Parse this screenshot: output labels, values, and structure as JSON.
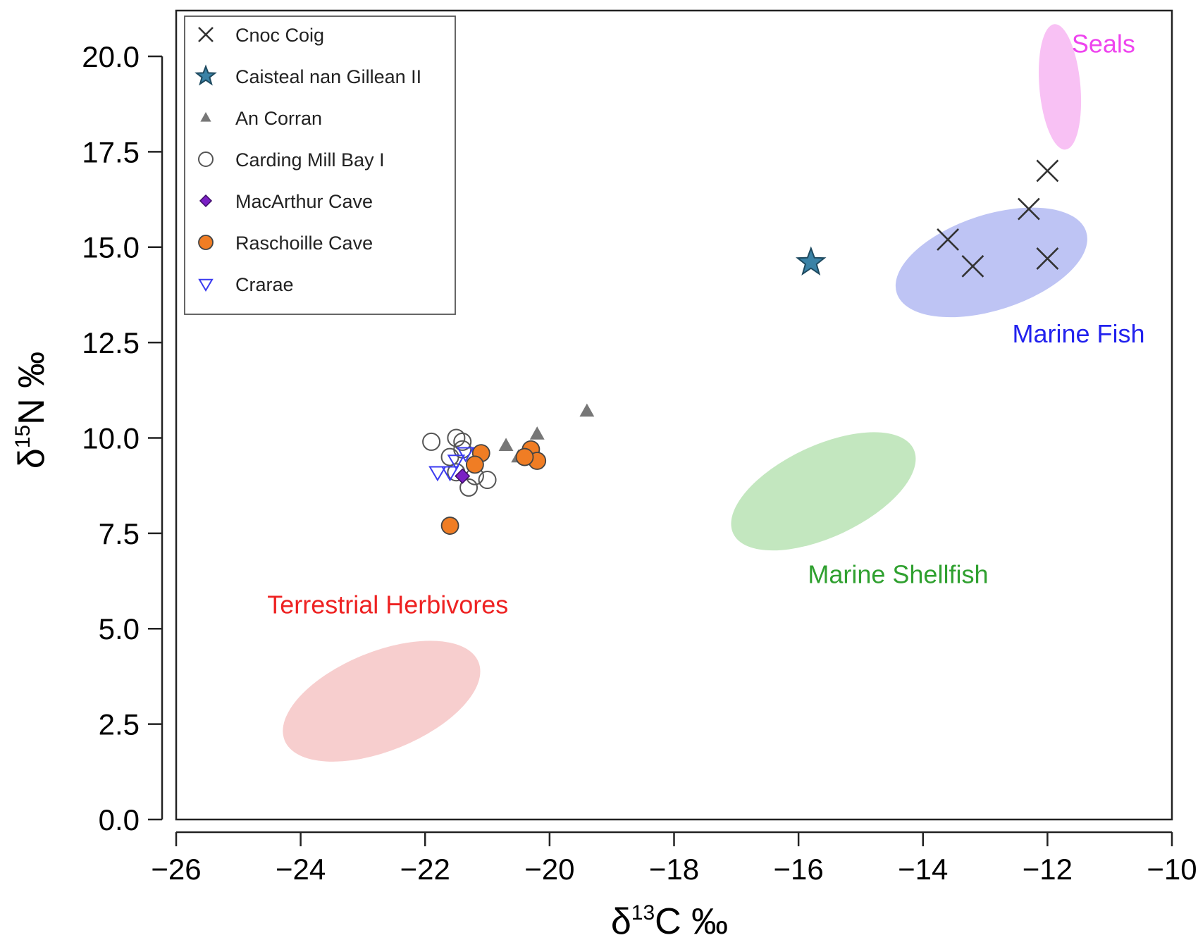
{
  "chart_data": {
    "type": "scatter",
    "title": "",
    "xlabel": "δ13C ‰",
    "ylabel": "δ15N ‰",
    "xlabel_parts": {
      "delta": "δ",
      "iso": "13",
      "elem": "C ‰"
    },
    "ylabel_parts": {
      "delta": "δ",
      "iso": "15",
      "elem": "N ‰"
    },
    "xlim": [
      -26,
      -10
    ],
    "ylim": [
      0,
      21.2
    ],
    "x_ticks": [
      -26,
      -24,
      -22,
      -20,
      -18,
      -16,
      -14,
      -12,
      -10
    ],
    "x_tick_labels": [
      "−26",
      "−24",
      "−22",
      "−20",
      "−18",
      "−16",
      "−14",
      "−12",
      "−10"
    ],
    "y_ticks": [
      0,
      2.5,
      5,
      7.5,
      10,
      12.5,
      15,
      17.5,
      20
    ],
    "y_tick_labels": [
      "0.0",
      "2.5",
      "5.0",
      "7.5",
      "10.0",
      "12.5",
      "15.0",
      "17.5",
      "20.0"
    ],
    "grid": false,
    "legend_position": "top-left",
    "regions": [
      {
        "label": "Seals",
        "color": "#ee44ee",
        "fill": "#f7b6f2",
        "cx": -11.8,
        "cy": 19.2,
        "rx": 0.33,
        "ry": 1.65,
        "angle_deg": -5,
        "label_x": -11.1,
        "label_y": 20.1,
        "anchor": "middle"
      },
      {
        "label": "Marine Fish",
        "color": "#2222ee",
        "fill": "#b3baf2",
        "cx": -12.9,
        "cy": 14.6,
        "rx": 1.6,
        "ry": 1.25,
        "angle_deg": -18,
        "label_x": -11.5,
        "label_y": 12.5,
        "anchor": "middle"
      },
      {
        "label": "Marine Shellfish",
        "color": "#2fa02f",
        "fill": "#b8e3b4",
        "cx": -15.6,
        "cy": 8.6,
        "rx": 1.6,
        "ry": 1.2,
        "angle_deg": -25,
        "label_x": -14.4,
        "label_y": 6.2,
        "anchor": "middle"
      },
      {
        "label": "Terrestrial Herbivores",
        "color": "#ee2222",
        "fill": "#f6c5c5",
        "cx": -22.7,
        "cy": 3.1,
        "rx": 1.68,
        "ry": 1.3,
        "angle_deg": -22,
        "label_x": -22.6,
        "label_y": 5.4,
        "anchor": "middle"
      }
    ],
    "series": [
      {
        "name": "Cnoc Coig",
        "marker": "x",
        "color": "#333333",
        "points": [
          [
            -12.0,
            17.0
          ],
          [
            -12.3,
            16.0
          ],
          [
            -13.6,
            15.2
          ],
          [
            -13.2,
            14.5
          ],
          [
            -12.0,
            14.7
          ]
        ]
      },
      {
        "name": "Caisteal nan Gillean II",
        "marker": "star",
        "color": "#3a82a6",
        "points": [
          [
            -15.8,
            14.6
          ]
        ]
      },
      {
        "name": "An Corran",
        "marker": "triangle",
        "color": "#777777",
        "points": [
          [
            -19.4,
            10.7
          ],
          [
            -20.2,
            10.1
          ],
          [
            -20.7,
            9.8
          ],
          [
            -20.5,
            9.5
          ]
        ]
      },
      {
        "name": "Carding Mill Bay I",
        "marker": "open-circle",
        "color": "#555555",
        "points": [
          [
            -21.9,
            9.9
          ],
          [
            -21.5,
            10.0
          ],
          [
            -21.4,
            9.7
          ],
          [
            -21.6,
            9.5
          ],
          [
            -21.5,
            9.1
          ],
          [
            -21.3,
            8.7
          ],
          [
            -21.0,
            8.9
          ],
          [
            -21.2,
            9.0
          ],
          [
            -21.4,
            9.9
          ]
        ]
      },
      {
        "name": "MacArthur Cave",
        "marker": "diamond",
        "color": "#7a1fc4",
        "points": [
          [
            -21.4,
            9.0
          ]
        ]
      },
      {
        "name": "Raschoille Cave",
        "marker": "filled-circle",
        "color": "#f07d24",
        "points": [
          [
            -21.1,
            9.6
          ],
          [
            -20.3,
            9.7
          ],
          [
            -20.2,
            9.4
          ],
          [
            -20.4,
            9.5
          ],
          [
            -21.2,
            9.3
          ],
          [
            -21.6,
            7.7
          ]
        ]
      },
      {
        "name": "Crarae",
        "marker": "open-triangle-down",
        "color": "#3b3bf0",
        "points": [
          [
            -21.8,
            9.1
          ],
          [
            -21.6,
            9.1
          ],
          [
            -21.5,
            9.4
          ],
          [
            -21.35,
            9.6
          ]
        ]
      }
    ]
  }
}
